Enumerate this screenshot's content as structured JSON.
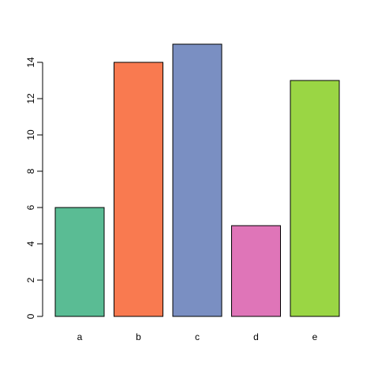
{
  "chart_data": {
    "type": "bar",
    "title": "",
    "xlabel": "",
    "ylabel": "",
    "categories": [
      "a",
      "b",
      "c",
      "d",
      "e"
    ],
    "values": [
      6,
      14,
      15,
      5,
      13
    ],
    "colors": [
      "#5abc94",
      "#f97a50",
      "#7a8fc2",
      "#df75b8",
      "#9ad644"
    ],
    "ylim": [
      0,
      15
    ],
    "yticks": [
      0,
      2,
      4,
      6,
      8,
      10,
      12,
      14
    ],
    "grid": false,
    "legend": "none"
  }
}
